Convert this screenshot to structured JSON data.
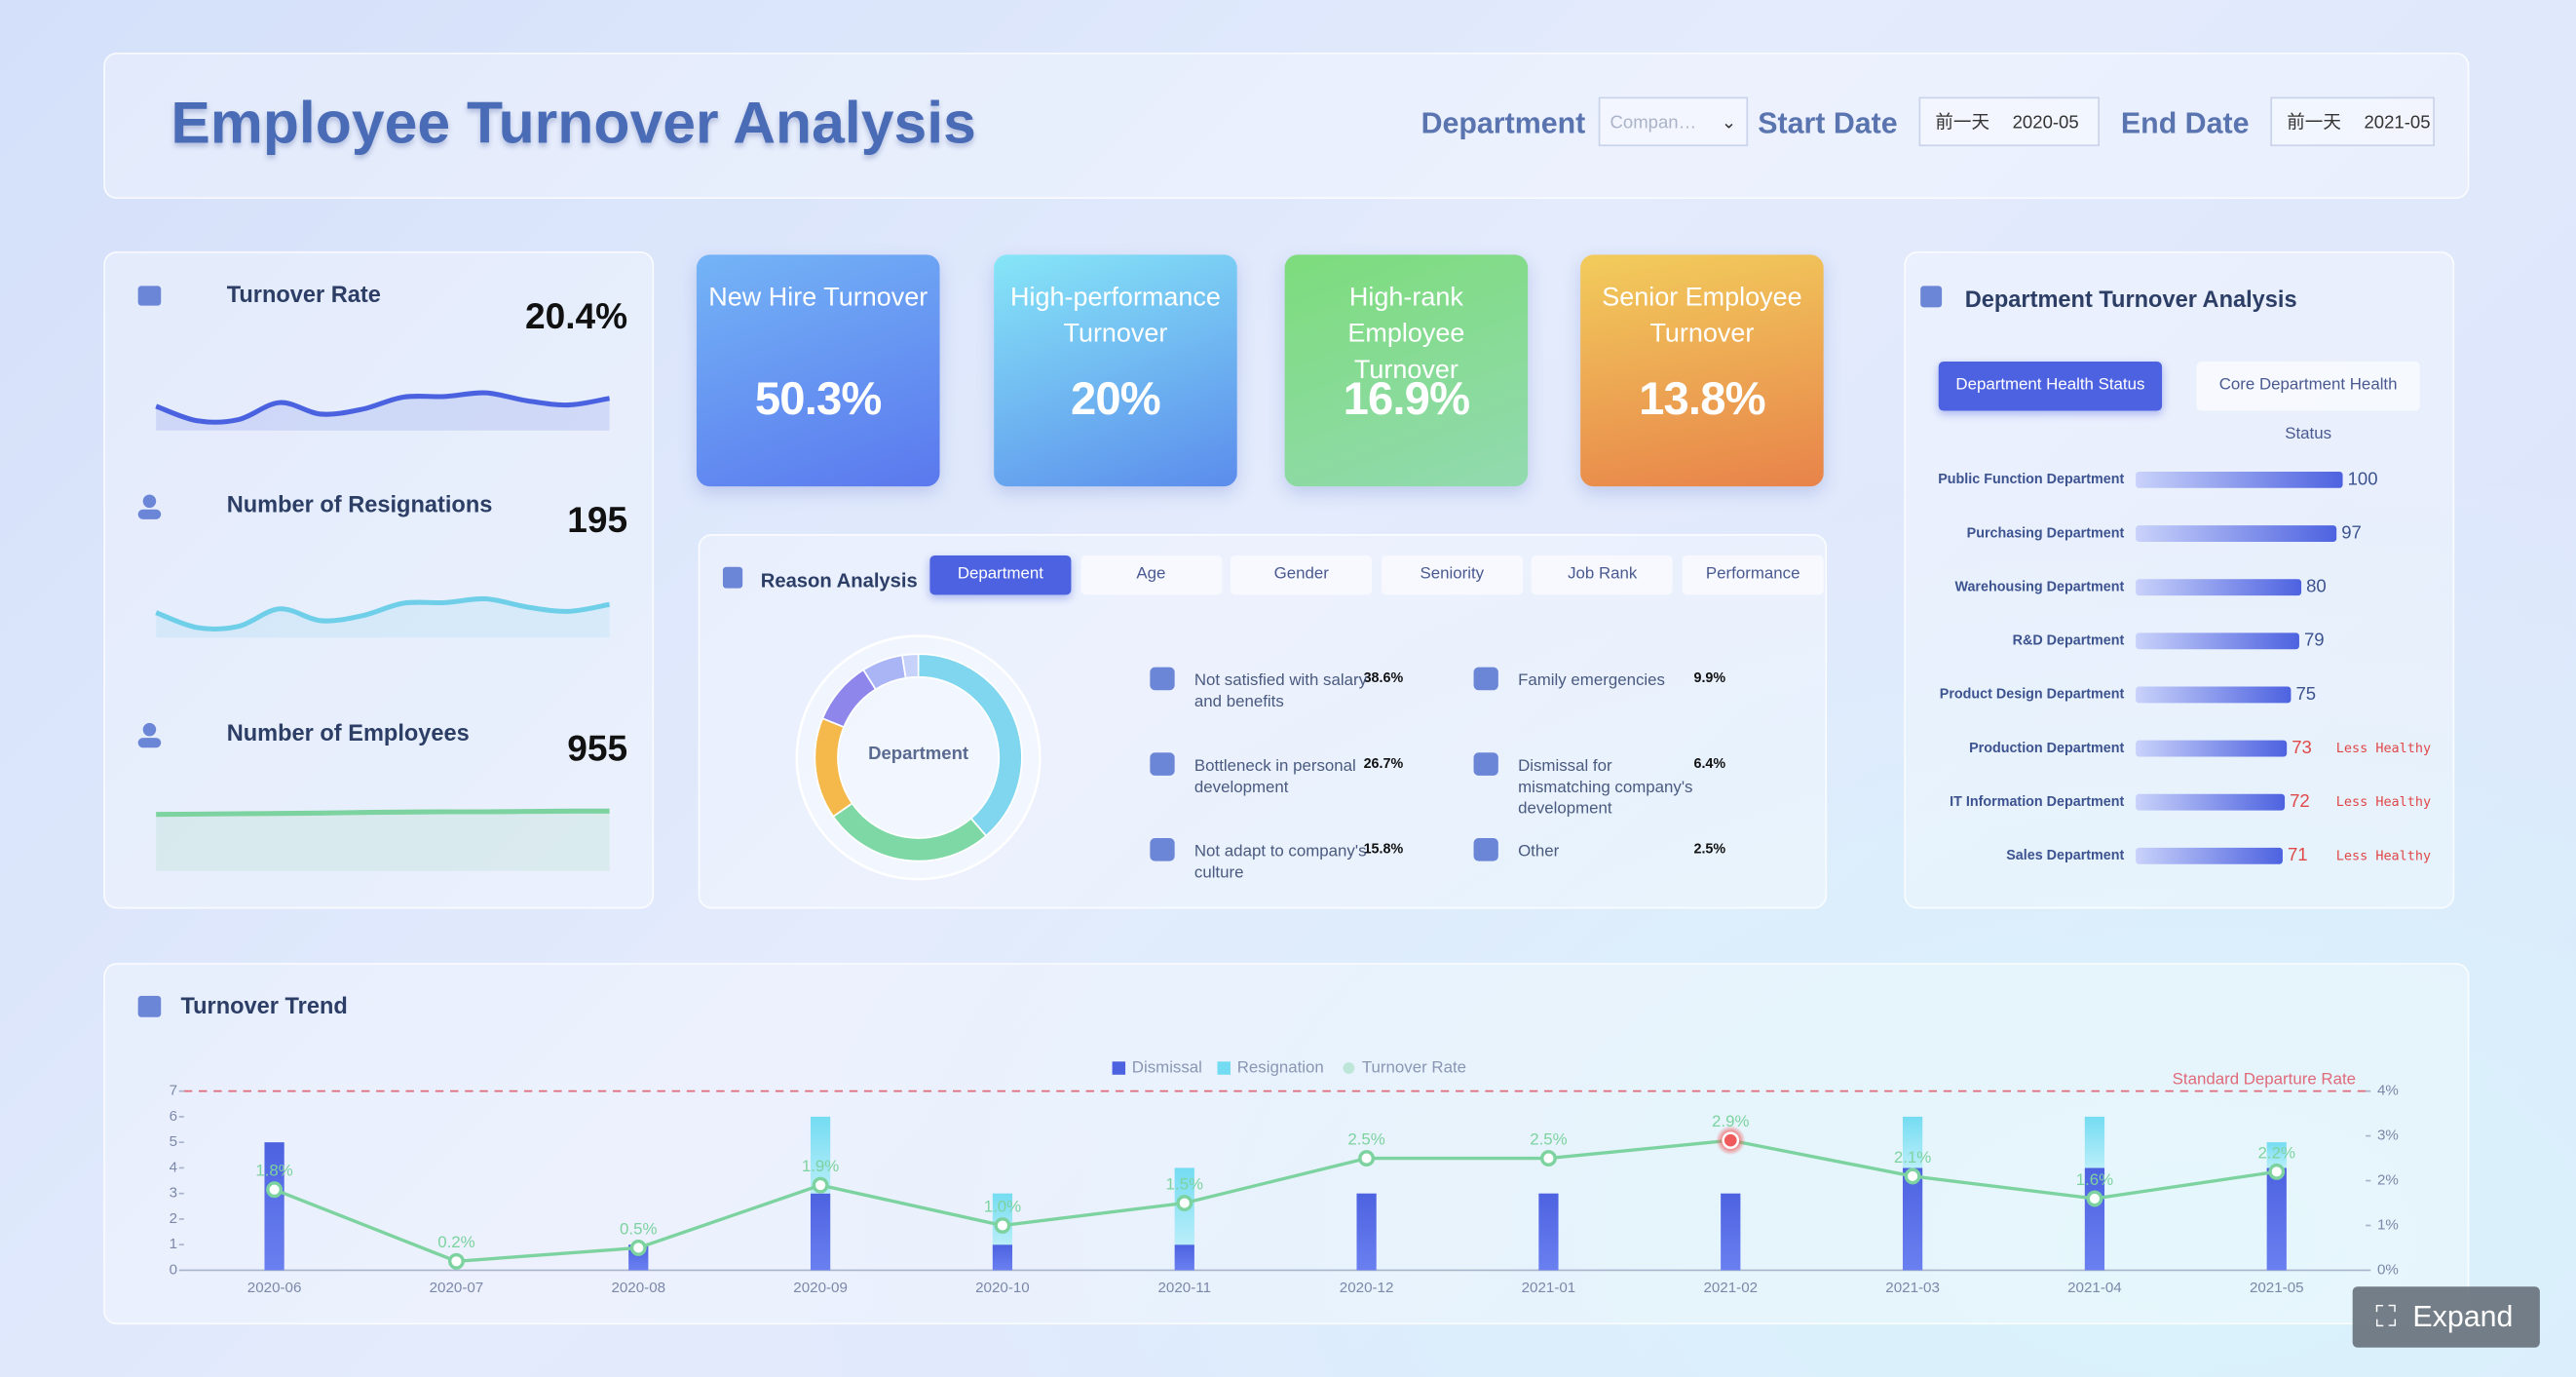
{
  "header": {
    "title": "Employee Turnover Analysis",
    "department_label": "Department",
    "department_value": "Compan…",
    "start_label": "Start Date",
    "start_prefix": "前一天",
    "start_value": "2020-05",
    "end_label": "End Date",
    "end_prefix": "前一天",
    "end_value": "2021-05"
  },
  "kpi_cards": [
    {
      "title": "New Hire Turnover",
      "value": "50.3%"
    },
    {
      "title": "High-performance Turnover",
      "value": "20%"
    },
    {
      "title": "High-rank Employee Turnover",
      "value": "16.9%"
    },
    {
      "title": "Senior Employee Turnover",
      "value": "13.8%"
    }
  ],
  "expand_button": "Expand",
  "chart_data": [
    {
      "type": "line",
      "title": "Turnover Rate",
      "total_label": "20.4%",
      "values": [
        4.0,
        1.6,
        1.8,
        4.6,
        2.7,
        3.5,
        5.5,
        5.6,
        6.2,
        4.9,
        4.2,
        5.3
      ],
      "ylim": [
        0,
        10
      ],
      "color": "#4a62e0"
    },
    {
      "type": "line",
      "title": "Number of Resignations",
      "total_label": "195",
      "values": [
        4.0,
        1.6,
        1.8,
        4.6,
        2.7,
        3.5,
        5.5,
        5.6,
        6.2,
        4.9,
        4.2,
        5.3
      ],
      "ylim": [
        0,
        10
      ],
      "color": "#6fcfe8"
    },
    {
      "type": "line",
      "title": "Number of Employees",
      "total_label": "955",
      "values": [
        8.6,
        8.65,
        8.7,
        8.75,
        8.8,
        8.9,
        8.95,
        9.0,
        9.0,
        9.05,
        9.1,
        9.1
      ],
      "ylim": [
        0,
        10
      ],
      "color": "#7dd3a0"
    },
    {
      "type": "pie",
      "title": "Reason Analysis",
      "tabs": [
        "Department",
        "Age",
        "Gender",
        "Seniority",
        "Job Rank",
        "Performance"
      ],
      "center_label": "Department",
      "categories": [
        "Not satisfied with salary and benefits",
        "Bottleneck in personal development",
        "Not adapt to company's culture",
        "Family emergencies",
        "Dismissal for mismatching company's development",
        "Other"
      ],
      "values": [
        38.6,
        26.7,
        15.8,
        9.9,
        6.4,
        2.5
      ],
      "value_labels": [
        "38.6%",
        "26.7%",
        "15.8%",
        "9.9%",
        "6.4%",
        "2.5%"
      ],
      "colors": [
        "#7fd6ee",
        "#7ed8a6",
        "#f5b84a",
        "#8e86ea",
        "#a9b5f5",
        "#c7d2fb"
      ]
    },
    {
      "type": "hbar",
      "title": "Department Turnover Analysis",
      "tabs": [
        "Department Health Status",
        "Core Department Health Status"
      ],
      "categories": [
        "Public Function Department",
        "Purchasing Department",
        "Warehousing Department",
        "R&D Department",
        "Product Design Department",
        "Production Department",
        "IT Information Department",
        "Sales Department"
      ],
      "values": [
        100,
        97,
        80,
        79,
        75,
        73,
        72,
        71
      ],
      "notes": [
        null,
        null,
        null,
        null,
        null,
        "Less Healthy",
        "Less Healthy",
        "Less Healthy"
      ],
      "xlim": [
        0,
        100
      ],
      "color": "#4d62e0"
    },
    {
      "type": "combo",
      "title": "Turnover Trend",
      "categories": [
        "2020-06",
        "2020-07",
        "2020-08",
        "2020-09",
        "2020-10",
        "2020-11",
        "2020-12",
        "2021-01",
        "2021-02",
        "2021-03",
        "2021-04",
        "2021-05"
      ],
      "series": [
        {
          "name": "Dismissal",
          "color": "#4d62e0",
          "values": [
            5,
            0,
            1,
            3,
            1,
            1,
            3,
            3,
            3,
            4,
            4,
            4
          ]
        },
        {
          "name": "Resignation",
          "color": "#74dcf2",
          "values": [
            0,
            0,
            0,
            3,
            2,
            3,
            0,
            0,
            0,
            2,
            2,
            1
          ]
        },
        {
          "name": "Turnover Rate",
          "color": "#7dd3a0",
          "axis": "y2",
          "values": [
            1.8,
            0.2,
            0.5,
            1.9,
            1.0,
            1.5,
            2.5,
            2.5,
            2.9,
            2.1,
            1.6,
            2.2
          ],
          "value_labels": [
            "1.8%",
            "0.2%",
            "0.5%",
            "1.9%",
            "1.0%",
            "1.5%",
            "2.5%",
            "2.5%",
            "2.9%",
            "2.1%",
            "1.6%",
            "2.2%"
          ]
        }
      ],
      "ylim": [
        0,
        7
      ],
      "yticks": [
        0,
        1,
        2,
        3,
        4,
        5,
        6,
        7
      ],
      "y2lim": [
        0,
        4
      ],
      "y2ticks": [
        {
          "value": 0,
          "label": "0%"
        },
        {
          "value": 1,
          "label": "1%"
        },
        {
          "value": 2,
          "label": "2%"
        },
        {
          "value": 3,
          "label": "3%"
        },
        {
          "value": 4,
          "label": "4%"
        }
      ],
      "reference_line": {
        "label": "Standard Departure Rate",
        "value": 7,
        "color": "#e06a7a"
      }
    }
  ]
}
